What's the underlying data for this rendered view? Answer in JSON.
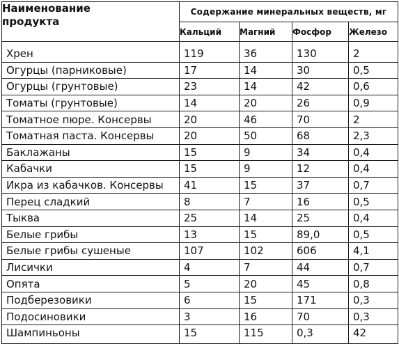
{
  "table": {
    "product_header_line1": "Наименование",
    "product_header_line2": "продукта",
    "group_header": "Содержание минеральных веществ, мг",
    "columns": [
      "Кальций",
      "Магний",
      "Фосфор",
      "Железо"
    ],
    "rows": [
      {
        "name": "Хрен",
        "calcium": "119",
        "magnesium": "36",
        "phosphorus": "130",
        "iron": "2"
      },
      {
        "name": "Огурцы (парниковые)",
        "calcium": "17",
        "magnesium": "14",
        "phosphorus": "30",
        "iron": "0,5"
      },
      {
        "name": "Огурцы (грунтовые)",
        "calcium": "23",
        "magnesium": "14",
        "phosphorus": "42",
        "iron": "0,6"
      },
      {
        "name": "Томаты (грунтовые)",
        "calcium": "14",
        "magnesium": "20",
        "phosphorus": "26",
        "iron": "0,9"
      },
      {
        "name": "Томатное пюре. Консервы",
        "calcium": "20",
        "magnesium": "46",
        "phosphorus": "70",
        "iron": "2"
      },
      {
        "name": "Томатная паста. Консервы",
        "calcium": "20",
        "magnesium": "50",
        "phosphorus": "68",
        "iron": "2,3"
      },
      {
        "name": "Баклажаны",
        "calcium": "15",
        "magnesium": "9",
        "phosphorus": "34",
        "iron": "0,4"
      },
      {
        "name": "Кабачки",
        "calcium": "15",
        "magnesium": "9",
        "phosphorus": "12",
        "iron": "0,4"
      },
      {
        "name": "Икра из кабачков. Консервы",
        "calcium": "41",
        "magnesium": "15",
        "phosphorus": "37",
        "iron": "0,7"
      },
      {
        "name": "Перец сладкий",
        "calcium": "8",
        "magnesium": "7",
        "phosphorus": "16",
        "iron": "0,5"
      },
      {
        "name": "Тыква",
        "calcium": "25",
        "magnesium": "14",
        "phosphorus": "25",
        "iron": "0,4"
      },
      {
        "name": "Белые грибы",
        "calcium": "13",
        "magnesium": "15",
        "phosphorus": "89,0",
        "iron": "0,5"
      },
      {
        "name": "Белые грибы сушеные",
        "calcium": "107",
        "magnesium": "102",
        "phosphorus": "606",
        "iron": "4,1"
      },
      {
        "name": "Лисички",
        "calcium": "4",
        "magnesium": "7",
        "phosphorus": "44",
        "iron": "0,7"
      },
      {
        "name": "Опята",
        "calcium": "5",
        "magnesium": "20",
        "phosphorus": "45",
        "iron": "0,8"
      },
      {
        "name": "Подберезовики",
        "calcium": "6",
        "magnesium": "15",
        "phosphorus": "171",
        "iron": "0,3"
      },
      {
        "name": "Подосиновики",
        "calcium": "3",
        "magnesium": "16",
        "phosphorus": "70",
        "iron": "0,3"
      },
      {
        "name": "Шампиньоны",
        "calcium": "15",
        "magnesium": "115",
        "phosphorus": "0,3",
        "iron": "42"
      }
    ]
  }
}
